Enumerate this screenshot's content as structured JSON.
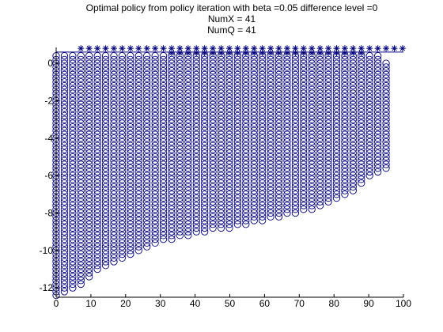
{
  "colors": {
    "marker": "#00007f",
    "axis": "#000000",
    "background": "#ffffff"
  },
  "chart_data": {
    "type": "scatter",
    "title_lines": [
      "Optimal policy from policy iteration with beta =0.05 difference level =0",
      "NumX = 41",
      "NumQ = 41"
    ],
    "xlabel": "",
    "ylabel": "",
    "xlim": [
      0,
      100
    ],
    "ylim": [
      -12.5,
      0.85
    ],
    "xticks": [
      0,
      10,
      20,
      30,
      40,
      50,
      60,
      70,
      80,
      90,
      100
    ],
    "yticks": [
      -12,
      -10,
      -8,
      -6,
      -4,
      -2,
      0
    ],
    "grid": false,
    "x_step": 2.375,
    "series": [
      {
        "marker": "circle",
        "description": "columns of circles: each column spans from top_y down to bottom_y",
        "columns": [
          {
            "x": 0.0,
            "top": 0.4,
            "bottom": -12.4
          },
          {
            "x": 2.375,
            "top": 0.4,
            "bottom": -12.2
          },
          {
            "x": 4.75,
            "top": 0.4,
            "bottom": -12.0
          },
          {
            "x": 7.125,
            "top": 0.4,
            "bottom": -11.8
          },
          {
            "x": 9.5,
            "top": 0.4,
            "bottom": -11.4
          },
          {
            "x": 11.875,
            "top": 0.4,
            "bottom": -11.0
          },
          {
            "x": 14.25,
            "top": 0.4,
            "bottom": -10.8
          },
          {
            "x": 16.625,
            "top": 0.4,
            "bottom": -10.6
          },
          {
            "x": 19.0,
            "top": 0.4,
            "bottom": -10.4
          },
          {
            "x": 21.375,
            "top": 0.4,
            "bottom": -10.2
          },
          {
            "x": 23.75,
            "top": 0.4,
            "bottom": -10.0
          },
          {
            "x": 26.125,
            "top": 0.4,
            "bottom": -9.8
          },
          {
            "x": 28.5,
            "top": 0.4,
            "bottom": -9.6
          },
          {
            "x": 30.875,
            "top": 0.4,
            "bottom": -9.4
          },
          {
            "x": 33.25,
            "top": 0.4,
            "bottom": -9.4
          },
          {
            "x": 35.625,
            "top": 0.4,
            "bottom": -9.2
          },
          {
            "x": 38.0,
            "top": 0.4,
            "bottom": -9.2
          },
          {
            "x": 40.375,
            "top": 0.4,
            "bottom": -9.0
          },
          {
            "x": 42.75,
            "top": 0.4,
            "bottom": -9.0
          },
          {
            "x": 45.125,
            "top": 0.4,
            "bottom": -8.8
          },
          {
            "x": 47.5,
            "top": 0.4,
            "bottom": -8.8
          },
          {
            "x": 49.875,
            "top": 0.4,
            "bottom": -8.8
          },
          {
            "x": 52.25,
            "top": 0.4,
            "bottom": -8.6
          },
          {
            "x": 54.625,
            "top": 0.4,
            "bottom": -8.6
          },
          {
            "x": 57.0,
            "top": 0.4,
            "bottom": -8.4
          },
          {
            "x": 59.375,
            "top": 0.4,
            "bottom": -8.4
          },
          {
            "x": 61.75,
            "top": 0.4,
            "bottom": -8.2
          },
          {
            "x": 64.125,
            "top": 0.4,
            "bottom": -8.2
          },
          {
            "x": 66.5,
            "top": 0.4,
            "bottom": -8.0
          },
          {
            "x": 68.875,
            "top": 0.4,
            "bottom": -8.0
          },
          {
            "x": 71.25,
            "top": 0.4,
            "bottom": -7.8
          },
          {
            "x": 73.625,
            "top": 0.4,
            "bottom": -7.8
          },
          {
            "x": 76.0,
            "top": 0.4,
            "bottom": -7.6
          },
          {
            "x": 78.375,
            "top": 0.4,
            "bottom": -7.4
          },
          {
            "x": 80.75,
            "top": 0.4,
            "bottom": -7.2
          },
          {
            "x": 83.125,
            "top": 0.4,
            "bottom": -7.0
          },
          {
            "x": 85.5,
            "top": 0.4,
            "bottom": -6.8
          },
          {
            "x": 87.875,
            "top": 0.4,
            "bottom": -6.4
          },
          {
            "x": 90.25,
            "top": 0.4,
            "bottom": -6.0
          },
          {
            "x": 92.625,
            "top": 0.4,
            "bottom": -5.8
          },
          {
            "x": 95.0,
            "top": 0.0,
            "bottom": -5.6
          }
        ]
      },
      {
        "marker": "asterisk",
        "description": "asterisks along the top of the plot",
        "row_upper": {
          "y": 0.8,
          "x_start": 7.125,
          "x_end": 100.0
        },
        "row_lower": {
          "y": 0.55,
          "x_start": 33.25,
          "x_end": 87.875
        }
      },
      {
        "marker": "line",
        "description": "horizontal reference line near top",
        "y": 0.6,
        "x_start": 0.0,
        "x_end": 100.0
      }
    ]
  }
}
